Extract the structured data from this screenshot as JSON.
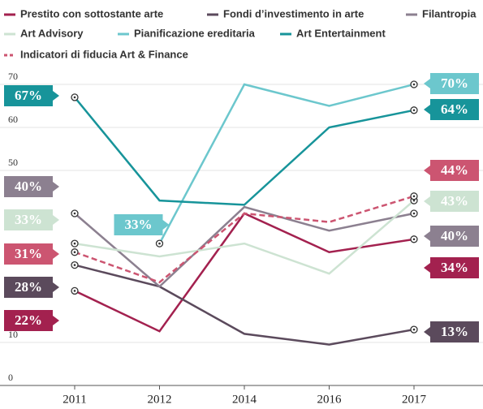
{
  "chart_data": {
    "type": "line",
    "categories": [
      "2011",
      "2012",
      "2014",
      "2016",
      "2017"
    ],
    "ylim": [
      0,
      70
    ],
    "yticks": [
      0,
      10,
      50,
      60,
      70
    ],
    "grid": true,
    "series": [
      {
        "name": "Prestito con sottostante arte",
        "color": "#a3214f",
        "values": [
          22,
          12.6,
          40,
          31,
          34
        ],
        "value_labels": [
          "22%",
          null,
          null,
          null,
          "34%"
        ]
      },
      {
        "name": "Fondi d’investimento in arte",
        "color": "#5b4a5c",
        "values": [
          28,
          23,
          12,
          9.5,
          13
        ],
        "value_labels": [
          "28%",
          null,
          null,
          null,
          "13%"
        ]
      },
      {
        "name": "Filantropia",
        "color": "#8c8090",
        "values": [
          40,
          23,
          41.5,
          36,
          40
        ],
        "value_labels": [
          "40%",
          null,
          null,
          null,
          "40%"
        ]
      },
      {
        "name": "Art Advisory",
        "color": "#cde3d2",
        "values": [
          33,
          30,
          33,
          26,
          43
        ],
        "value_labels": [
          "33%",
          null,
          null,
          null,
          "43%"
        ]
      },
      {
        "name": "Pianificazione ereditaria",
        "color": "#6cc7cd",
        "values": [
          null,
          33,
          70,
          65,
          70
        ],
        "value_labels": [
          null,
          "33%",
          null,
          null,
          "70%"
        ]
      },
      {
        "name": "Art Entertainment",
        "color": "#17949a",
        "values": [
          67,
          43,
          42,
          60,
          64
        ],
        "value_labels": [
          "67%",
          null,
          null,
          null,
          "64%"
        ]
      },
      {
        "name": "Indicatori di fiducia Art & Finance",
        "color": "#cc5571",
        "dashed": true,
        "values": [
          31,
          24,
          40,
          38,
          44
        ],
        "value_labels": [
          "31%",
          null,
          null,
          null,
          "44%"
        ]
      }
    ]
  }
}
